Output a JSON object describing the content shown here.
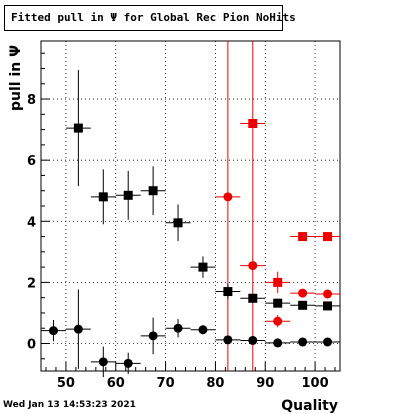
{
  "chart_data": {
    "type": "scatter",
    "title": "Fitted pull in  Ψ  for Global Rec Pion NoHits",
    "xlabel": "Quality",
    "ylabel": "pull in  Ψ",
    "xlim": [
      45,
      105
    ],
    "ylim": [
      -0.9,
      9.9
    ],
    "x_ticks": [
      50,
      60,
      70,
      80,
      90,
      100
    ],
    "y_ticks": [
      0,
      2,
      4,
      6,
      8
    ],
    "grid": true,
    "vertical_lines": [
      {
        "x": 82.5,
        "color": "#ee0000"
      },
      {
        "x": 87.5,
        "color": "#ee0000"
      }
    ],
    "series": [
      {
        "marker": "square",
        "color": "#000000",
        "points": [
          {
            "x": 52.5,
            "y": 7.05,
            "ey": 1.9
          },
          {
            "x": 57.5,
            "y": 4.8,
            "ey": 0.9
          },
          {
            "x": 62.5,
            "y": 4.85,
            "ey": 0.8
          },
          {
            "x": 67.5,
            "y": 5.0,
            "ey": 0.8
          },
          {
            "x": 72.5,
            "y": 3.95,
            "ey": 0.6
          },
          {
            "x": 77.5,
            "y": 2.5,
            "ey": 0.35
          },
          {
            "x": 82.5,
            "y": 1.7,
            "ey": 0.25
          },
          {
            "x": 87.5,
            "y": 1.48,
            "ey": 0.15
          },
          {
            "x": 92.5,
            "y": 1.32,
            "ey": 0.1
          },
          {
            "x": 97.5,
            "y": 1.25,
            "ey": 0.06
          },
          {
            "x": 102.5,
            "y": 1.23,
            "ey": 0.05
          }
        ]
      },
      {
        "marker": "circle",
        "color": "#000000",
        "points": [
          {
            "x": 47.5,
            "y": 0.42,
            "ey": 0.35
          },
          {
            "x": 52.5,
            "y": 0.47,
            "ey": 1.3
          },
          {
            "x": 57.5,
            "y": -0.6,
            "ey": 0.5
          },
          {
            "x": 62.5,
            "y": -0.65,
            "ey": 0.35
          },
          {
            "x": 67.5,
            "y": 0.25,
            "ey": 0.6
          },
          {
            "x": 72.5,
            "y": 0.5,
            "ey": 0.3
          },
          {
            "x": 77.5,
            "y": 0.45,
            "ey": 0.15
          },
          {
            "x": 82.5,
            "y": 0.12,
            "ey": 0.1
          },
          {
            "x": 87.5,
            "y": 0.1,
            "ey": 0.05
          },
          {
            "x": 92.5,
            "y": 0.02,
            "ey": 0.04
          },
          {
            "x": 97.5,
            "y": 0.05,
            "ey": 0.03
          },
          {
            "x": 102.5,
            "y": 0.05,
            "ey": 0.03
          }
        ]
      },
      {
        "marker": "square",
        "color": "#ee0000",
        "points": [
          {
            "x": 87.5,
            "y": 7.2,
            "ey": 0.0
          },
          {
            "x": 92.5,
            "y": 2.0,
            "ey": 0.35
          },
          {
            "x": 97.5,
            "y": 3.5,
            "ey": 0.12
          },
          {
            "x": 102.5,
            "y": 3.5,
            "ey": 0.12
          }
        ]
      },
      {
        "marker": "circle",
        "color": "#ee0000",
        "points": [
          {
            "x": 82.5,
            "y": 4.8,
            "ey": 0.0
          },
          {
            "x": 87.5,
            "y": 2.55,
            "ey": 0.0
          },
          {
            "x": 92.5,
            "y": 0.73,
            "ey": 0.2
          },
          {
            "x": 97.5,
            "y": 1.65,
            "ey": 0.1
          },
          {
            "x": 102.5,
            "y": 1.62,
            "ey": 0.08
          }
        ]
      }
    ]
  },
  "footer": {
    "timestamp": "Wed Jan 13 14:53:23 2021"
  }
}
